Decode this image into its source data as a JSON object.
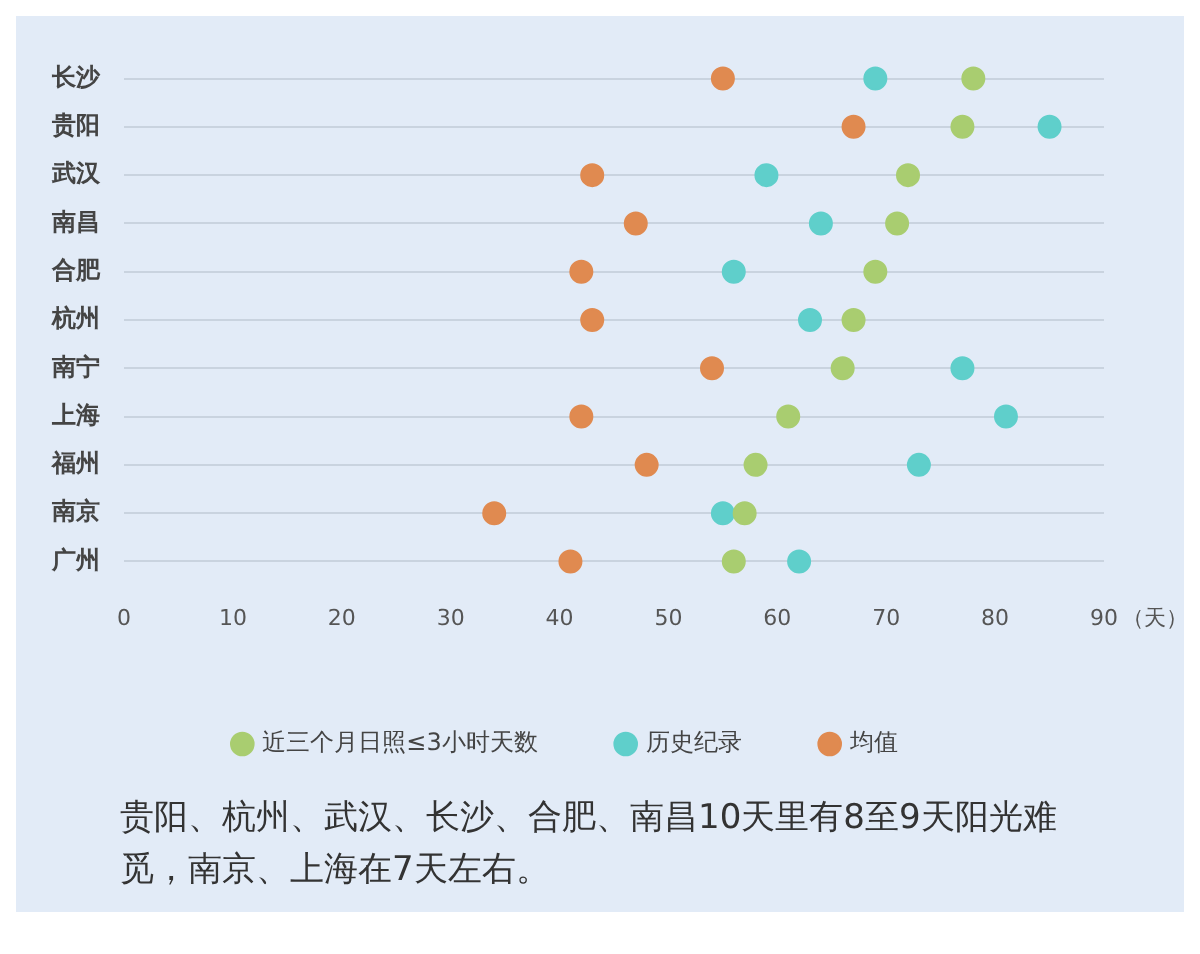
{
  "chart_data": {
    "type": "scatter",
    "orientation": "horizontal",
    "categories": [
      "长沙",
      "贵阳",
      "武汉",
      "南昌",
      "合肥",
      "杭州",
      "南宁",
      "上海",
      "福州",
      "南京",
      "广州"
    ],
    "series": [
      {
        "name": "近三个月日照≤3小时天数",
        "color": "#a9cd70",
        "values": [
          78,
          77,
          72,
          71,
          69,
          67,
          66,
          61,
          58,
          57,
          56
        ]
      },
      {
        "name": "历史纪录",
        "color": "#5fcfcb",
        "values": [
          69,
          85,
          59,
          64,
          56,
          63,
          77,
          81,
          73,
          55,
          62
        ]
      },
      {
        "name": "均值",
        "color": "#e08a50",
        "values": [
          55,
          67,
          43,
          47,
          42,
          43,
          54,
          42,
          48,
          34,
          41
        ]
      }
    ],
    "xlim": [
      0,
      90
    ],
    "xticks": [
      0,
      10,
      20,
      30,
      40,
      50,
      60,
      70,
      80,
      90
    ],
    "xlabel": "（天）",
    "grid": "y",
    "legend": "bottom",
    "marker": "circle",
    "annotations": [
      "贵阳、杭州、武汉、长沙、合肥、南昌10天里有8至9天阳光难觅，南京、上海在7天左右。"
    ]
  }
}
